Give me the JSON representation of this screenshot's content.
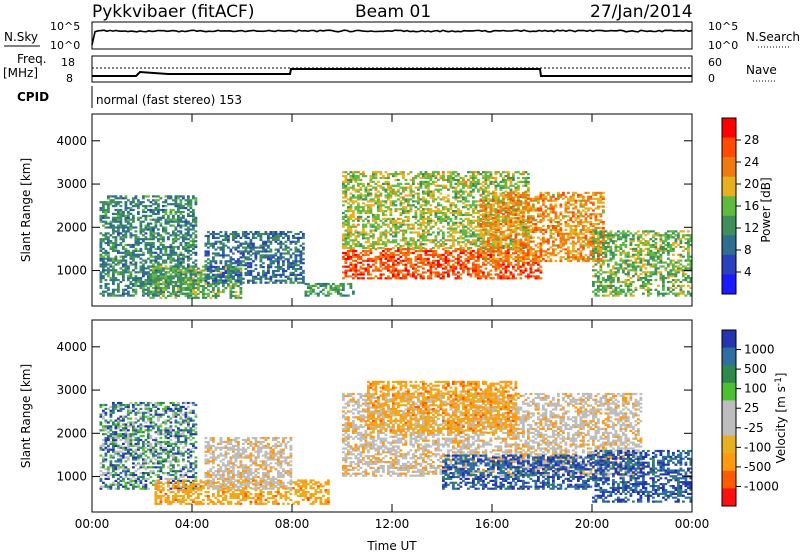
{
  "header": {
    "station": "Pykkvibaer (fitACF)",
    "beam": "Beam 01",
    "date": "27/Jan/2014"
  },
  "top_panels": {
    "nsky_label": "N.Sky",
    "nsky_ticks": [
      "10^5",
      "10^0"
    ],
    "nsearch_label": "N.Search",
    "nsearch_ticks": [
      "10^5",
      "10^0"
    ],
    "freq_label": "Freq.",
    "freq_unit": "[MHz]",
    "freq_ticks": [
      "18",
      "8"
    ],
    "nave_label": "Nave",
    "nave_ticks": [
      "60",
      "0"
    ],
    "cpid_label": "CPID",
    "cpid_text": "normal (fast stereo) 153"
  },
  "colors": {
    "power_scale": [
      "#1a1aff",
      "#2b3fbf",
      "#2e6e8f",
      "#3f8f5a",
      "#5fba3f",
      "#e6b020",
      "#f07a10",
      "#ff4a00",
      "#ff0000"
    ],
    "velocity_scale": [
      "#ff1010",
      "#ff5a00",
      "#ff9a10",
      "#e8b020",
      "#bdbdbd",
      "#bdbdbd",
      "#4cc030",
      "#2e8a4a",
      "#2e6ea0",
      "#2535b0"
    ],
    "ground_scatter": "#bdbdbd"
  },
  "chart_data": [
    {
      "type": "heatmap",
      "name": "power",
      "xlabel": "",
      "ylabel": "Slant Range [km]",
      "x_ticks": [
        "00:00",
        "04:00",
        "08:00",
        "12:00",
        "16:00",
        "20:00",
        "00:00"
      ],
      "y_ticks": [
        "4000",
        "3000",
        "2000",
        "1000"
      ],
      "ylim": [
        180,
        4620
      ],
      "colorbar": {
        "label": "Power [dB]",
        "ticks": [
          "28",
          "24",
          "20",
          "16",
          "12",
          "8",
          "4"
        ],
        "range": [
          0,
          32
        ]
      },
      "echo_regions": [
        {
          "start_h": 0.3,
          "end_h": 4.2,
          "min_km": 400,
          "max_km": 2700,
          "level": 10
        },
        {
          "start_h": 2.3,
          "end_h": 6.0,
          "min_km": 350,
          "max_km": 1100,
          "level": 14
        },
        {
          "start_h": 4.5,
          "end_h": 8.5,
          "min_km": 700,
          "max_km": 1900,
          "level": 8
        },
        {
          "start_h": 8.5,
          "end_h": 10.5,
          "min_km": 400,
          "max_km": 700,
          "level": 12
        },
        {
          "start_h": 10.0,
          "end_h": 18.0,
          "min_km": 800,
          "max_km": 1500,
          "level": 27
        },
        {
          "start_h": 10.0,
          "end_h": 17.5,
          "min_km": 1500,
          "max_km": 3300,
          "level": 17
        },
        {
          "start_h": 15.5,
          "end_h": 20.5,
          "min_km": 1200,
          "max_km": 2800,
          "level": 22
        },
        {
          "start_h": 20.0,
          "end_h": 24.0,
          "min_km": 400,
          "max_km": 1900,
          "level": 15
        }
      ]
    },
    {
      "type": "heatmap",
      "name": "velocity",
      "xlabel": "Time UT",
      "ylabel": "Slant Range [km]",
      "x_ticks": [
        "00:00",
        "04:00",
        "08:00",
        "12:00",
        "16:00",
        "20:00",
        "00:00"
      ],
      "y_ticks": [
        "4000",
        "3000",
        "2000",
        "1000"
      ],
      "ylim": [
        180,
        4620
      ],
      "colorbar": {
        "label": "Velocity [m s^-1]",
        "ticks": [
          "1000",
          "500",
          "100",
          "25",
          "-25",
          "-100",
          "-500",
          "-1000"
        ]
      },
      "echo_regions": [
        {
          "start_h": 0.3,
          "end_h": 4.2,
          "min_km": 700,
          "max_km": 2700,
          "kind": "mixed"
        },
        {
          "start_h": 2.5,
          "end_h": 9.5,
          "min_km": 350,
          "max_km": 900,
          "kind": "negative"
        },
        {
          "start_h": 4.5,
          "end_h": 8.0,
          "min_km": 700,
          "max_km": 1900,
          "kind": "ground"
        },
        {
          "start_h": 10.0,
          "end_h": 22.0,
          "min_km": 1000,
          "max_km": 2900,
          "kind": "ground"
        },
        {
          "start_h": 11.0,
          "end_h": 17.0,
          "min_km": 2000,
          "max_km": 3200,
          "kind": "negative"
        },
        {
          "start_h": 14.0,
          "end_h": 20.0,
          "min_km": 700,
          "max_km": 1500,
          "kind": "positive"
        },
        {
          "start_h": 20.0,
          "end_h": 24.0,
          "min_km": 400,
          "max_km": 1600,
          "kind": "positive"
        }
      ]
    }
  ]
}
